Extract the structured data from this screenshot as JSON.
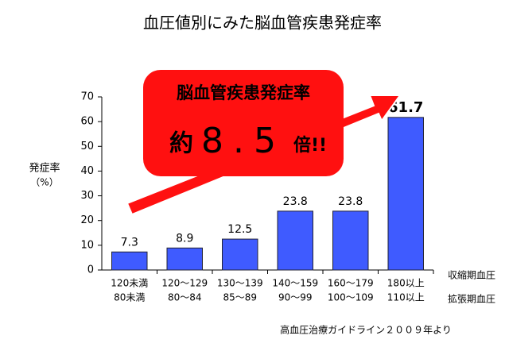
{
  "chart_data": {
    "type": "bar",
    "title": "血圧値別にみた脳血管疾患発症率",
    "y_label": [
      "発症率",
      "（%）"
    ],
    "categories": [
      [
        "120未満",
        "80未満"
      ],
      [
        "120～129",
        "80～84"
      ],
      [
        "130～139",
        "85～89"
      ],
      [
        "140～159",
        "90～99"
      ],
      [
        "160～179",
        "100～109"
      ],
      [
        "180以上",
        "110以上"
      ]
    ],
    "row_labels": [
      "収縮期血圧",
      "拡張期血圧"
    ],
    "values": [
      7.3,
      8.9,
      12.5,
      23.8,
      23.8,
      61.7
    ],
    "color": "#3f5bff",
    "ylim": [
      0,
      70
    ],
    "yticks": [
      0,
      10,
      20,
      30,
      40,
      50,
      60,
      70
    ],
    "grid": false,
    "annotation": {
      "title": "脳血管疾患発症率",
      "prefix": "約",
      "value": "8.5",
      "suffix": "倍!!"
    },
    "source": "高血圧治療ガイドライン２００９年より"
  }
}
